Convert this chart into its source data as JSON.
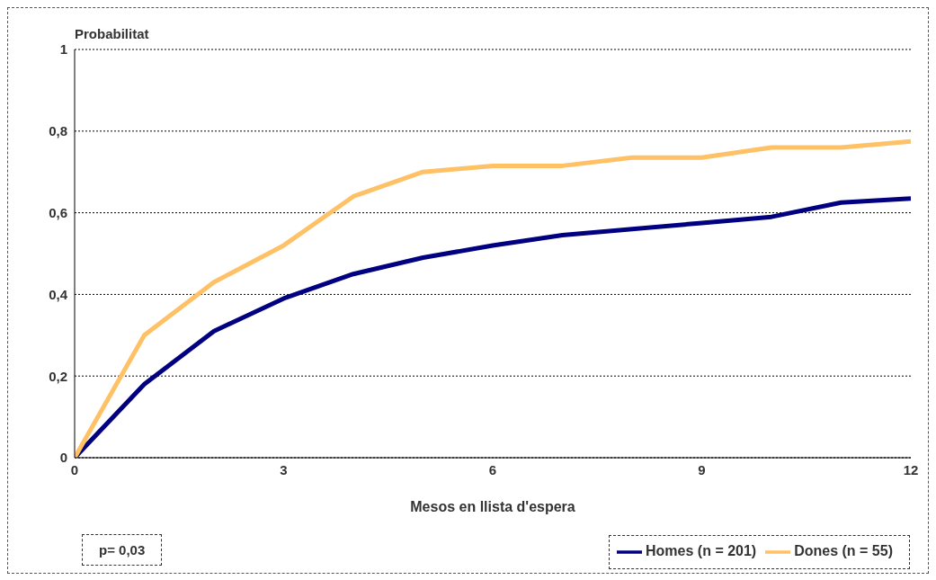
{
  "chart_data": {
    "type": "line",
    "ylabel": "Probabilitat",
    "xlabel": "Mesos en llista d'espera",
    "x": [
      0,
      1,
      2,
      3,
      4,
      5,
      6,
      7,
      8,
      9,
      10,
      11,
      12
    ],
    "series": [
      {
        "name": "Homes (n = 201)",
        "color": "#000080",
        "values": [
          0,
          0.18,
          0.31,
          0.39,
          0.45,
          0.49,
          0.52,
          0.545,
          0.56,
          0.575,
          0.59,
          0.625,
          0.635
        ]
      },
      {
        "name": "Dones (n = 55)",
        "color": "#ffc166",
        "values": [
          0,
          0.3,
          0.43,
          0.52,
          0.64,
          0.7,
          0.715,
          0.715,
          0.735,
          0.735,
          0.76,
          0.76,
          0.775
        ]
      }
    ],
    "xlim": [
      0,
      12
    ],
    "xticks": [
      0,
      3,
      6,
      9,
      12
    ],
    "ylim": [
      0,
      1
    ],
    "yticks": [
      0,
      {
        "value": 0.2,
        "label": "0,2"
      },
      {
        "value": 0.4,
        "label": "0,4"
      },
      {
        "value": 0.6,
        "label": "0,6"
      },
      {
        "value": 0.8,
        "label": "0,8"
      },
      1
    ],
    "grid": "y",
    "legend": "bottom right",
    "marker": "none",
    "line_style": "solid",
    "annotations": [
      "p= 0,03"
    ]
  }
}
